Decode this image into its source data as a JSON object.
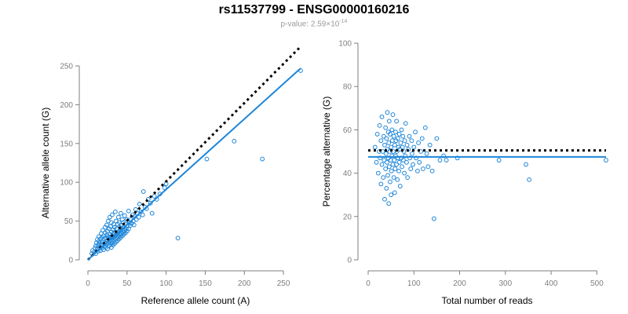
{
  "title": "rs11537799 - ENSG00000160216",
  "subtitle": {
    "label": "p-value: 2.59×10",
    "exponent": "-14"
  },
  "colors": {
    "points": "#1f86d8",
    "fit_line": "#1f86d8",
    "reference_line": "#000000",
    "axis": "#7f7f7f"
  },
  "chart_data": [
    {
      "type": "scatter",
      "xlabel": "Reference allele count (A)",
      "ylabel": "Alternative allele count (G)",
      "xlim": [
        0,
        275
      ],
      "ylim": [
        0,
        250
      ],
      "xticks": [
        0,
        50,
        100,
        150,
        200,
        250
      ],
      "yticks": [
        0,
        50,
        100,
        150,
        200,
        250
      ],
      "fit_line": {
        "x": [
          0,
          272
        ],
        "y": [
          0,
          247
        ]
      },
      "reference_line": {
        "x": [
          0,
          272
        ],
        "y": [
          0,
          275
        ]
      },
      "points": [
        [
          5,
          8
        ],
        [
          6,
          12
        ],
        [
          8,
          10
        ],
        [
          9,
          15
        ],
        [
          10,
          8
        ],
        [
          10,
          18
        ],
        [
          11,
          22
        ],
        [
          12,
          14
        ],
        [
          12,
          26
        ],
        [
          13,
          11
        ],
        [
          13,
          19
        ],
        [
          14,
          24
        ],
        [
          14,
          30
        ],
        [
          15,
          16
        ],
        [
          15,
          21
        ],
        [
          16,
          12
        ],
        [
          16,
          27
        ],
        [
          17,
          19
        ],
        [
          17,
          34
        ],
        [
          18,
          15
        ],
        [
          18,
          23
        ],
        [
          18,
          29
        ],
        [
          19,
          20
        ],
        [
          19,
          38
        ],
        [
          20,
          13
        ],
        [
          20,
          25
        ],
        [
          20,
          31
        ],
        [
          21,
          18
        ],
        [
          21,
          27
        ],
        [
          22,
          22
        ],
        [
          22,
          35
        ],
        [
          22,
          42
        ],
        [
          23,
          16
        ],
        [
          23,
          28
        ],
        [
          24,
          20
        ],
        [
          24,
          32
        ],
        [
          24,
          45
        ],
        [
          25,
          14
        ],
        [
          25,
          25
        ],
        [
          25,
          37
        ],
        [
          26,
          22
        ],
        [
          26,
          30
        ],
        [
          26,
          50
        ],
        [
          27,
          18
        ],
        [
          27,
          27
        ],
        [
          27,
          40
        ],
        [
          28,
          24
        ],
        [
          28,
          33
        ],
        [
          28,
          55
        ],
        [
          29,
          20
        ],
        [
          29,
          29
        ],
        [
          29,
          43
        ],
        [
          30,
          16
        ],
        [
          30,
          26
        ],
        [
          30,
          36
        ],
        [
          30,
          48
        ],
        [
          31,
          22
        ],
        [
          31,
          31
        ],
        [
          31,
          58
        ],
        [
          32,
          19
        ],
        [
          32,
          28
        ],
        [
          32,
          39
        ],
        [
          33,
          25
        ],
        [
          33,
          34
        ],
        [
          33,
          46
        ],
        [
          34,
          21
        ],
        [
          34,
          30
        ],
        [
          34,
          42
        ],
        [
          35,
          27
        ],
        [
          35,
          36
        ],
        [
          35,
          62
        ],
        [
          36,
          23
        ],
        [
          36,
          32
        ],
        [
          36,
          50
        ],
        [
          37,
          28
        ],
        [
          37,
          40
        ],
        [
          38,
          25
        ],
        [
          38,
          34
        ],
        [
          38,
          46
        ],
        [
          39,
          30
        ],
        [
          39,
          55
        ],
        [
          40,
          27
        ],
        [
          40,
          37
        ],
        [
          40,
          48
        ],
        [
          41,
          32
        ],
        [
          41,
          42
        ],
        [
          42,
          29
        ],
        [
          42,
          38
        ],
        [
          42,
          60
        ],
        [
          43,
          34
        ],
        [
          43,
          45
        ],
        [
          44,
          31
        ],
        [
          44,
          52
        ],
        [
          45,
          36
        ],
        [
          45,
          48
        ],
        [
          46,
          33
        ],
        [
          46,
          42
        ],
        [
          47,
          38
        ],
        [
          47,
          57
        ],
        [
          48,
          35
        ],
        [
          48,
          46
        ],
        [
          49,
          40
        ],
        [
          50,
          37
        ],
        [
          50,
          52
        ],
        [
          51,
          44
        ],
        [
          52,
          40
        ],
        [
          52,
          63
        ],
        [
          53,
          48
        ],
        [
          54,
          44
        ],
        [
          55,
          52
        ],
        [
          56,
          47
        ],
        [
          57,
          58
        ],
        [
          58,
          50
        ],
        [
          59,
          45
        ],
        [
          60,
          56
        ],
        [
          61,
          65
        ],
        [
          62,
          52
        ],
        [
          63,
          60
        ],
        [
          65,
          55
        ],
        [
          66,
          72
        ],
        [
          68,
          62
        ],
        [
          70,
          58
        ],
        [
          71,
          88
        ],
        [
          73,
          68
        ],
        [
          75,
          66
        ],
        [
          77,
          78
        ],
        [
          80,
          73
        ],
        [
          82,
          60
        ],
        [
          85,
          82
        ],
        [
          88,
          78
        ],
        [
          92,
          85
        ],
        [
          98,
          93
        ],
        [
          100,
          98
        ],
        [
          115,
          28
        ],
        [
          152,
          130
        ],
        [
          187,
          153
        ],
        [
          223,
          130
        ],
        [
          272,
          244
        ]
      ]
    },
    {
      "type": "scatter",
      "xlabel": "Total number of reads",
      "ylabel": "Percentage alternative (G)",
      "xlim": [
        0,
        520
      ],
      "ylim": [
        0,
        100
      ],
      "xticks": [
        0,
        100,
        200,
        300,
        400,
        500
      ],
      "yticks": [
        0,
        20,
        40,
        60,
        80,
        100
      ],
      "fit_line": {
        "x": [
          0,
          520
        ],
        "y": [
          47.5,
          47.5
        ]
      },
      "reference_line": {
        "x": [
          0,
          520
        ],
        "y": [
          50.5,
          50.5
        ]
      },
      "points": [
        [
          15,
          52
        ],
        [
          18,
          45
        ],
        [
          20,
          58
        ],
        [
          22,
          40
        ],
        [
          24,
          50
        ],
        [
          25,
          62
        ],
        [
          26,
          47
        ],
        [
          28,
          35
        ],
        [
          28,
          55
        ],
        [
          30,
          44
        ],
        [
          30,
          66
        ],
        [
          32,
          50
        ],
        [
          33,
          38
        ],
        [
          34,
          57
        ],
        [
          35,
          46
        ],
        [
          36,
          28
        ],
        [
          36,
          53
        ],
        [
          38,
          42
        ],
        [
          38,
          61
        ],
        [
          39,
          49
        ],
        [
          40,
          33
        ],
        [
          40,
          56
        ],
        [
          41,
          45
        ],
        [
          42,
          68
        ],
        [
          42,
          51
        ],
        [
          43,
          39
        ],
        [
          44,
          59
        ],
        [
          44,
          47
        ],
        [
          45,
          26
        ],
        [
          45,
          54
        ],
        [
          46,
          43
        ],
        [
          46,
          64
        ],
        [
          47,
          50
        ],
        [
          48,
          36
        ],
        [
          48,
          58
        ],
        [
          49,
          46
        ],
        [
          50,
          52
        ],
        [
          50,
          30
        ],
        [
          51,
          41
        ],
        [
          52,
          60
        ],
        [
          52,
          48
        ],
        [
          53,
          55
        ],
        [
          54,
          44
        ],
        [
          54,
          67
        ],
        [
          55,
          50
        ],
        [
          56,
          38
        ],
        [
          56,
          57
        ],
        [
          57,
          46
        ],
        [
          58,
          53
        ],
        [
          58,
          31
        ],
        [
          59,
          42
        ],
        [
          60,
          59
        ],
        [
          60,
          48
        ],
        [
          61,
          55
        ],
        [
          62,
          44
        ],
        [
          62,
          64
        ],
        [
          63,
          50
        ],
        [
          64,
          37
        ],
        [
          65,
          56
        ],
        [
          65,
          47
        ],
        [
          66,
          52
        ],
        [
          67,
          41
        ],
        [
          68,
          58
        ],
        [
          68,
          45
        ],
        [
          69,
          51
        ],
        [
          70,
          34
        ],
        [
          71,
          54
        ],
        [
          72,
          47
        ],
        [
          73,
          60
        ],
        [
          74,
          43
        ],
        [
          75,
          52
        ],
        [
          76,
          57
        ],
        [
          77,
          46
        ],
        [
          78,
          50
        ],
        [
          79,
          40
        ],
        [
          80,
          55
        ],
        [
          81,
          48
        ],
        [
          82,
          63
        ],
        [
          84,
          45
        ],
        [
          85,
          53
        ],
        [
          86,
          38
        ],
        [
          88,
          51
        ],
        [
          90,
          57
        ],
        [
          91,
          47
        ],
        [
          93,
          42
        ],
        [
          95,
          55
        ],
        [
          96,
          49
        ],
        [
          98,
          44
        ],
        [
          100,
          52
        ],
        [
          103,
          59
        ],
        [
          105,
          47
        ],
        [
          108,
          41
        ],
        [
          110,
          54
        ],
        [
          112,
          45
        ],
        [
          115,
          50
        ],
        [
          118,
          56
        ],
        [
          120,
          42
        ],
        [
          125,
          61
        ],
        [
          128,
          49
        ],
        [
          131,
          43
        ],
        [
          135,
          53
        ],
        [
          140,
          41
        ],
        [
          144,
          19
        ],
        [
          150,
          56
        ],
        [
          157,
          46
        ],
        [
          165,
          48
        ],
        [
          171,
          46
        ],
        [
          195,
          47
        ],
        [
          286,
          46
        ],
        [
          345,
          44
        ],
        [
          352,
          37
        ],
        [
          520,
          46
        ]
      ]
    }
  ]
}
